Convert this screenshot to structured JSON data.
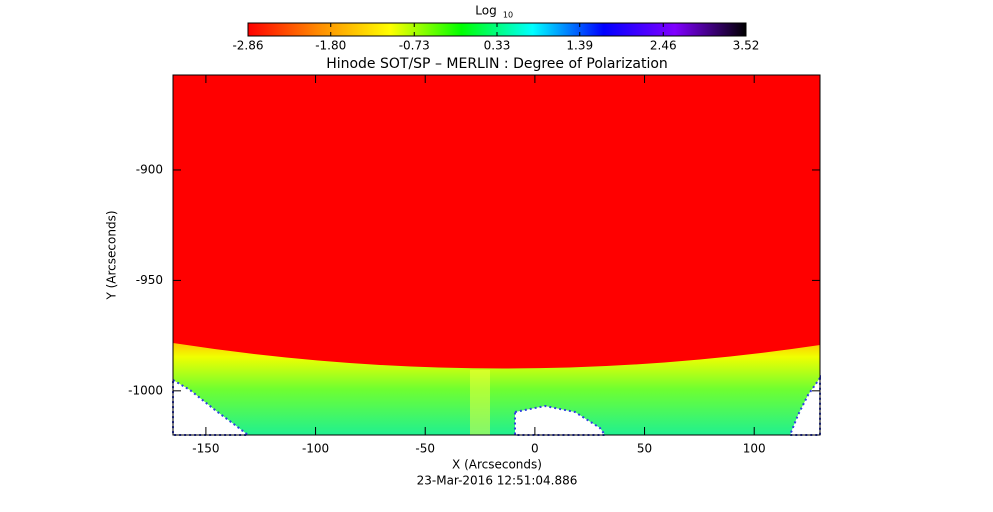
{
  "chart_data": {
    "type": "image",
    "title": "Hinode SOT/SP – MERLIN : Degree of Polarization",
    "xlabel": "X (Arcseconds)",
    "ylabel": "Y (Arcseconds)",
    "annotation": "23-Mar-2016 12:51:04.886",
    "xlim": [
      -165,
      130
    ],
    "ylim": [
      -1020,
      -857
    ],
    "xticks": [
      -150,
      -100,
      -50,
      0,
      50,
      100
    ],
    "yticks": [
      -1000,
      -950,
      -900
    ],
    "colorbar": {
      "label": "Log",
      "label_sub": "10",
      "lim": [
        -2.86,
        3.52
      ],
      "ticks": [
        -2.86,
        {
          "value": -1.8,
          "label": "-1.80"
        },
        -0.73,
        0.33,
        1.39,
        2.46,
        3.52
      ],
      "colors": [
        "#ff0000",
        "#ff8c00",
        "#ffff00",
        "#00ff00",
        "#00ffff",
        "#0000ff",
        "#8000ff",
        "#000000"
      ]
    }
  }
}
